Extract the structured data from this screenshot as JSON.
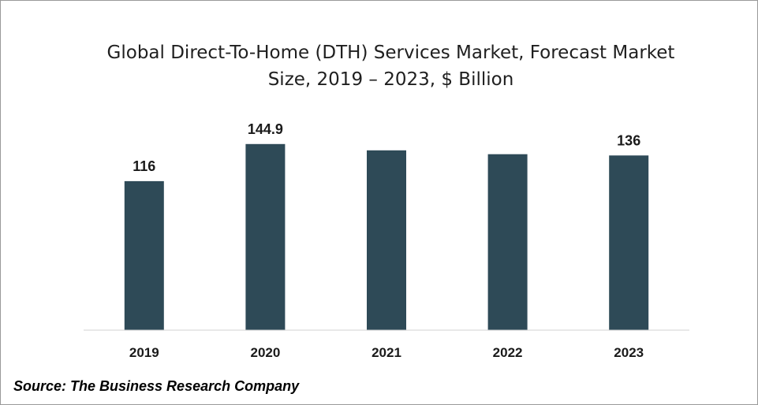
{
  "chart_data": {
    "type": "bar",
    "title_line1": "Global Direct-To-Home (DTH) Services Market, Forecast Market",
    "title_line2": "Size, 2019 – 2023, $ Billion",
    "categories": [
      "2019",
      "2020",
      "2021",
      "2022",
      "2023"
    ],
    "values": [
      116,
      144.9,
      140,
      137,
      136
    ],
    "data_labels": [
      "116",
      "144.9",
      "",
      "",
      "136"
    ],
    "ylim": [
      0,
      146
    ],
    "bar_color": "#2e4a57",
    "grid": false,
    "legend": "none"
  },
  "source": "Source: The Business Research Company"
}
